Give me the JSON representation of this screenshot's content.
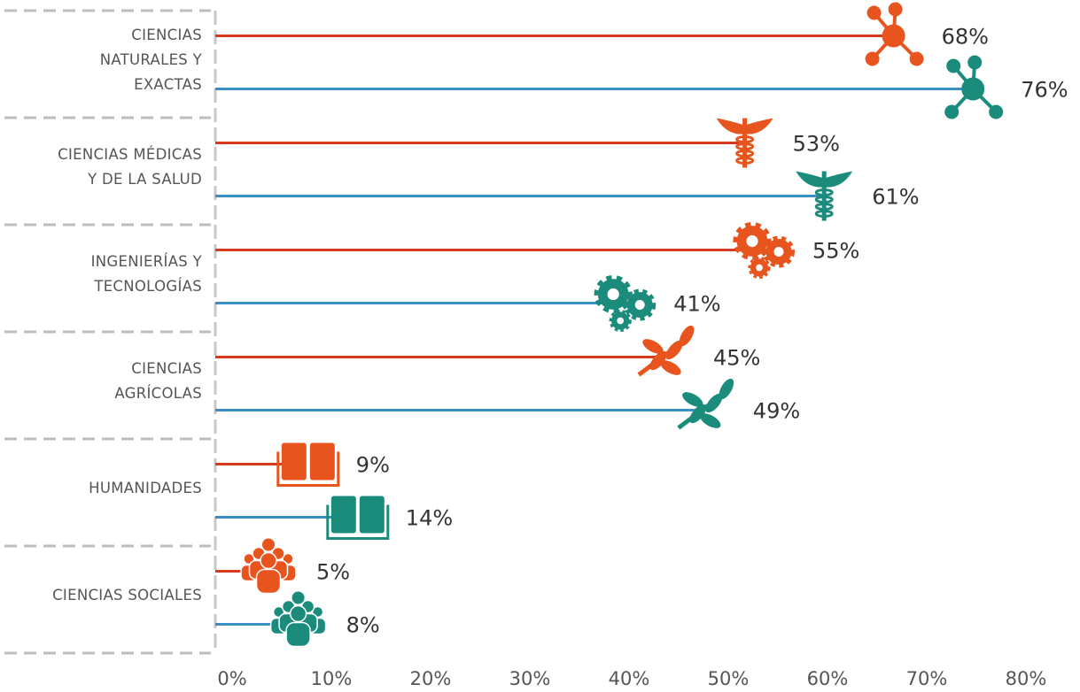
{
  "chart_data": {
    "type": "lollipop_bar_horizontal",
    "categories": [
      "CIENCIAS\nNATURALES Y\nEXACTAS",
      "CIENCIAS MÉDICAS\nY DE LA SALUD",
      "INGENIERÍAS Y\nTECNOLOGÍAS",
      "CIENCIAS\nAGRÍCOLAS",
      "HUMANIDADES",
      "CIENCIAS SOCIALES"
    ],
    "series": [
      {
        "color": "#d63a1e",
        "marker_color": "#e8541e",
        "values": [
          68,
          53,
          55,
          45,
          9,
          5
        ],
        "value_labels": [
          "68%",
          "53%",
          "55%",
          "45%",
          "9%",
          "5%"
        ]
      },
      {
        "color": "#3b8fc6",
        "marker_color": "#1b8c7c",
        "values": [
          76,
          61,
          41,
          49,
          14,
          8
        ],
        "value_labels": [
          "76%",
          "61%",
          "41%",
          "49%",
          "14%",
          "8%"
        ]
      }
    ],
    "xlim": [
      0,
      80
    ],
    "xticks": [
      {
        "value": 0,
        "label": "0%"
      },
      {
        "value": 10,
        "label": "10%"
      },
      {
        "value": 20,
        "label": "20%"
      },
      {
        "value": 30,
        "label": "30%"
      },
      {
        "value": 40,
        "label": "40%"
      },
      {
        "value": 50,
        "label": "50%"
      },
      {
        "value": 60,
        "label": "60%"
      },
      {
        "value": 70,
        "label": "70%"
      },
      {
        "value": 80,
        "label": "80%"
      }
    ]
  }
}
